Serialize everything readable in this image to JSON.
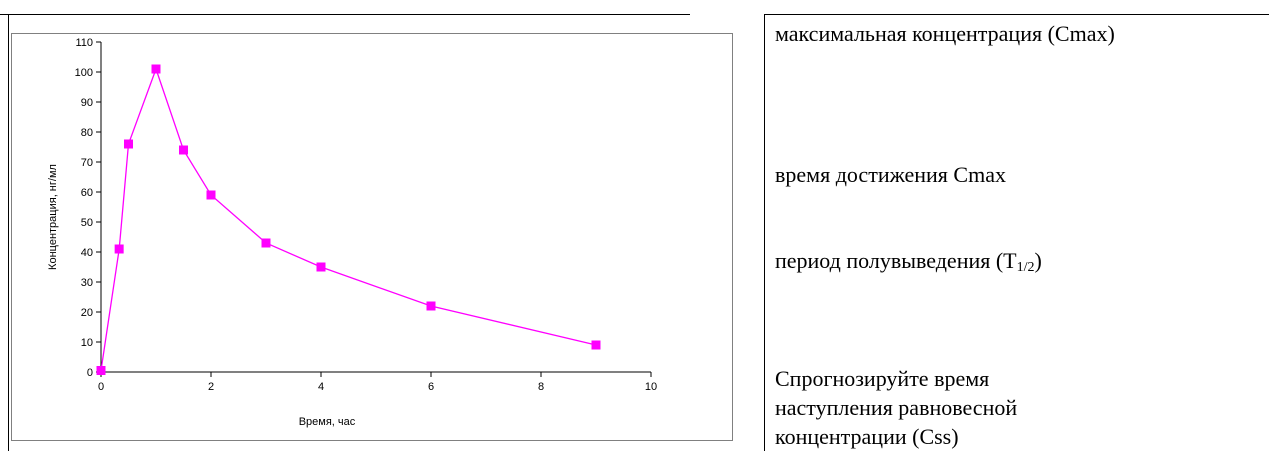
{
  "chart_data": {
    "type": "line",
    "xlabel": "Время, час",
    "ylabel": "Концентрация, нг/мл",
    "xlim": [
      0,
      10
    ],
    "ylim": [
      0,
      110
    ],
    "xticks": [
      "0",
      "2",
      "4",
      "6",
      "8",
      "10"
    ],
    "yticks": [
      "0",
      "10",
      "20",
      "30",
      "40",
      "50",
      "60",
      "70",
      "80",
      "90",
      "100",
      "110"
    ],
    "grid": false,
    "marker": "square",
    "color": "#ff00ff",
    "x": [
      0,
      0.33,
      0.5,
      1,
      1.5,
      2,
      3,
      4,
      6,
      9
    ],
    "y": [
      0.5,
      41,
      76,
      101,
      74,
      59,
      43,
      35,
      22,
      9
    ]
  },
  "properties": {
    "cmax": "максимальная концентрация (Cmax)",
    "tmax": "время достижения Cmax",
    "half_life_main": "период полувыведения (T",
    "half_life_sub": "1/2",
    "half_life_end": ")",
    "css": "Спрогнозируйте время наступления равновесной концентрации (Css)"
  }
}
